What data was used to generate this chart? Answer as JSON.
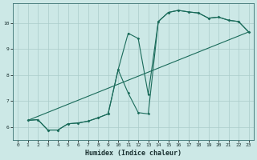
{
  "xlabel": "Humidex (Indice chaleur)",
  "bg_color": "#cce8e6",
  "grid_color": "#aaccca",
  "line_color": "#1a6b5a",
  "xlim": [
    -0.5,
    23.5
  ],
  "ylim": [
    5.5,
    10.75
  ],
  "xticks": [
    0,
    1,
    2,
    3,
    4,
    5,
    6,
    7,
    8,
    9,
    10,
    11,
    12,
    13,
    14,
    15,
    16,
    17,
    18,
    19,
    20,
    21,
    22,
    23
  ],
  "yticks": [
    6,
    7,
    8,
    9,
    10
  ],
  "curve1_x": [
    1,
    2,
    3,
    4,
    5,
    6,
    7,
    8,
    9,
    10,
    11,
    12,
    13,
    14,
    15,
    16,
    17,
    18,
    19,
    20,
    21,
    22,
    23
  ],
  "curve1_y": [
    6.25,
    6.28,
    5.88,
    5.88,
    6.12,
    6.15,
    6.22,
    6.35,
    6.5,
    8.2,
    9.6,
    9.4,
    7.25,
    10.05,
    10.4,
    10.48,
    10.42,
    10.38,
    10.18,
    10.22,
    10.1,
    10.05,
    9.65
  ],
  "curve2_x": [
    1,
    2,
    3,
    4,
    5,
    6,
    7,
    8,
    9,
    10,
    11,
    12,
    13,
    14,
    15,
    16,
    17,
    18,
    19,
    20,
    21,
    22,
    23
  ],
  "curve2_y": [
    6.25,
    6.28,
    5.88,
    5.88,
    6.12,
    6.15,
    6.22,
    6.35,
    6.5,
    8.2,
    7.3,
    6.55,
    6.5,
    10.05,
    10.4,
    10.48,
    10.42,
    10.38,
    10.18,
    10.22,
    10.1,
    10.05,
    9.65
  ],
  "curve3_x": [
    1,
    23
  ],
  "curve3_y": [
    6.25,
    9.65
  ]
}
